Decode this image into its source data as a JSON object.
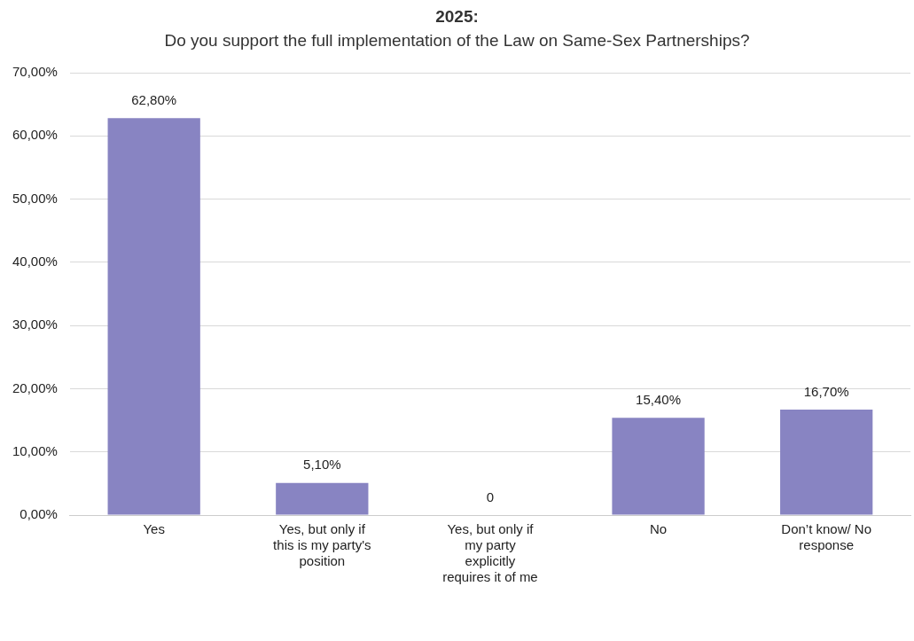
{
  "chart_data": {
    "type": "bar",
    "title": "2025:",
    "subtitle": "Do you support the full implementation of the Law on Same-Sex Partnerships?",
    "categories": [
      "Yes",
      "Yes, but only if this is my party's position",
      "Yes, but only if my party explicitly requires it of me",
      "No",
      "Don’t know/ No response"
    ],
    "values": [
      62.8,
      5.1,
      0,
      15.4,
      16.7
    ],
    "value_labels": [
      "62,80%",
      "5,10%",
      "0",
      "15,40%",
      "16,70%"
    ],
    "color": "#8884c2",
    "ylim": [
      0,
      70
    ],
    "yticks": [
      {
        "value": 0,
        "label": "0,00%"
      },
      {
        "value": 10,
        "label": "10,00%"
      },
      {
        "value": 20,
        "label": "20,00%"
      },
      {
        "value": 30,
        "label": "30,00%"
      },
      {
        "value": 40,
        "label": "40,00%"
      },
      {
        "value": 50,
        "label": "50,00%"
      },
      {
        "value": 60,
        "label": "60,00%"
      },
      {
        "value": 70,
        "label": "70,00%"
      }
    ],
    "grid": "y",
    "legend": false
  }
}
